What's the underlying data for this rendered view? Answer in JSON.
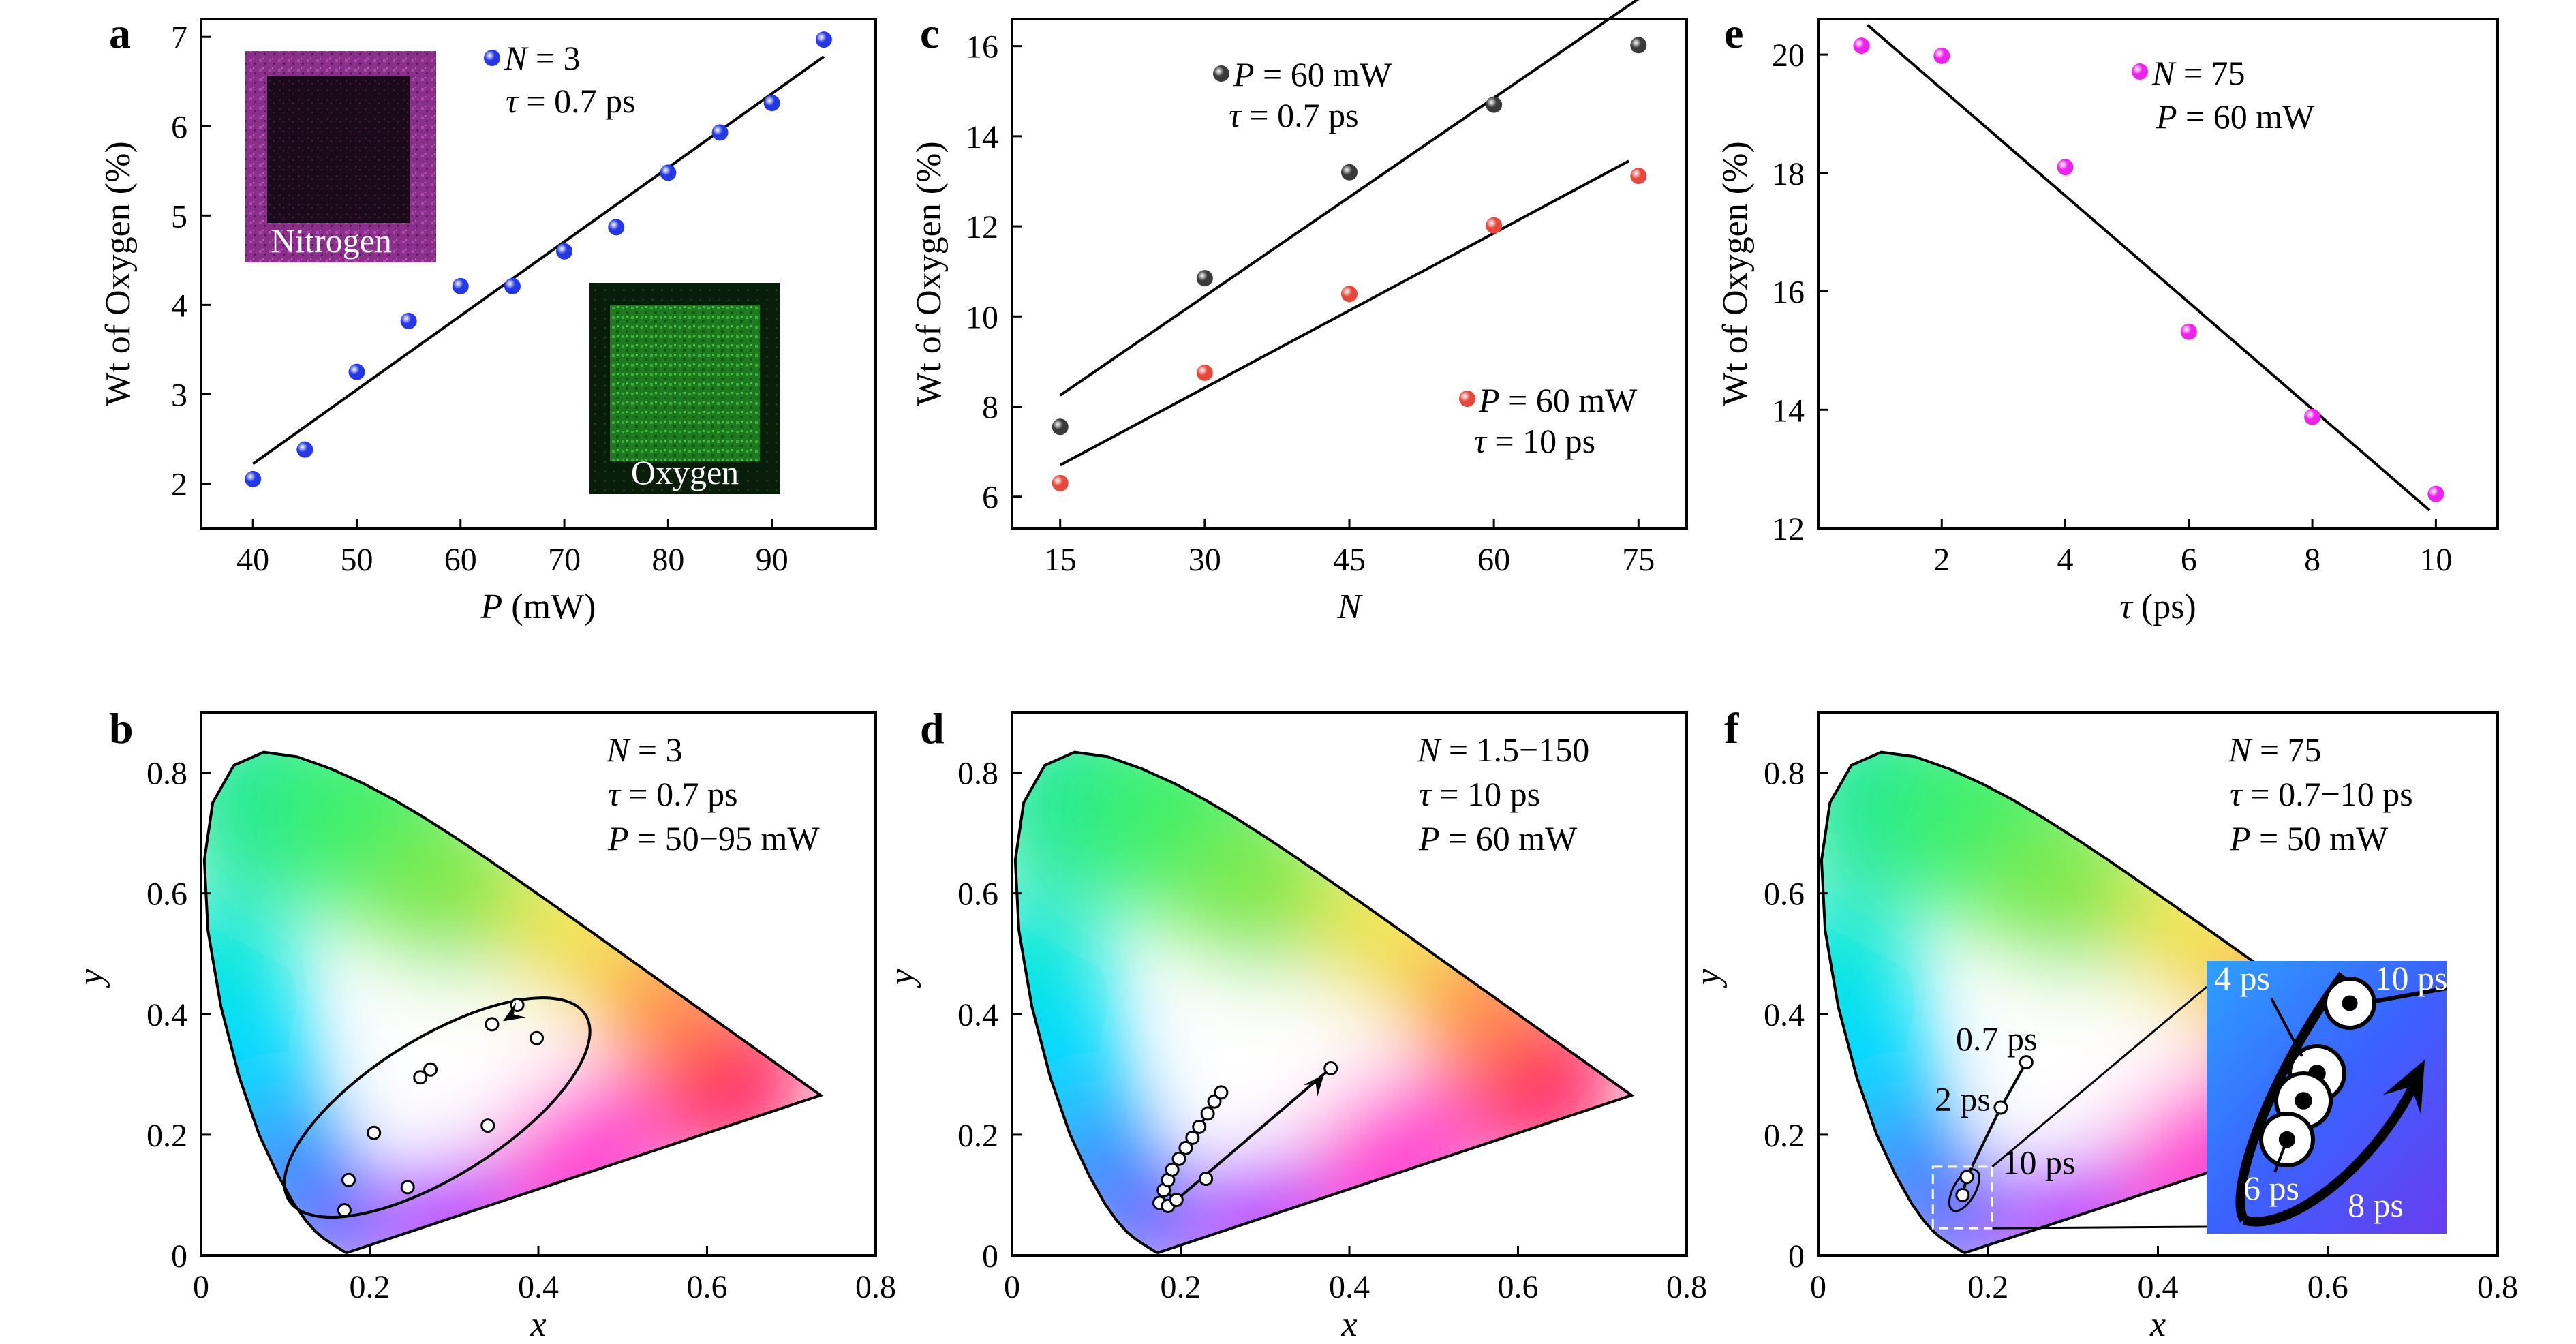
{
  "chart_data": [
    {
      "panel": "a",
      "type": "scatter",
      "xlabel": "P (mW)",
      "ylabel": "Wt of Oxygen (%)",
      "xlim": [
        35,
        100
      ],
      "ylim": [
        1.5,
        7.2
      ],
      "xticks": [
        "40",
        "50",
        "60",
        "70",
        "80",
        "90"
      ],
      "yticks": [
        "2",
        "3",
        "4",
        "5",
        "6",
        "7"
      ],
      "series": [
        {
          "color": "#2438e8",
          "x": [
            40,
            45,
            50,
            55,
            60,
            65,
            70,
            75,
            80,
            85,
            90,
            95
          ],
          "y": [
            2.05,
            2.38,
            3.25,
            3.82,
            4.21,
            4.21,
            4.6,
            4.87,
            5.48,
            5.93,
            6.26,
            6.97
          ],
          "fit": [
            [
              40,
              2.22
            ],
            [
              95,
              6.78
            ]
          ]
        }
      ],
      "annotation": {
        "line1": "N = 3",
        "line2": "τ = 0.7 ps"
      },
      "insets": [
        "Nitrogen",
        "Oxygen"
      ],
      "grid": false
    },
    {
      "panel": "c",
      "type": "scatter",
      "xlabel": "N",
      "ylabel": "Wt of Oxygen (%)",
      "xlim": [
        10,
        80
      ],
      "ylim": [
        5.3,
        16.6
      ],
      "xticks": [
        "15",
        "30",
        "45",
        "60",
        "75"
      ],
      "yticks": [
        "6",
        "8",
        "10",
        "12",
        "14",
        "16"
      ],
      "series": [
        {
          "color": "#3a3a3a",
          "x": [
            15,
            30,
            45,
            60,
            75
          ],
          "y": [
            7.55,
            10.85,
            13.2,
            14.7,
            16.02
          ],
          "fit": [
            [
              15,
              8.25
            ],
            [
              75,
              17.05
            ]
          ],
          "label": {
            "line1": "P = 60 mW",
            "line2": "τ = 0.7 ps"
          }
        },
        {
          "color": "#e8483c",
          "x": [
            15,
            30,
            45,
            60,
            75
          ],
          "y": [
            6.3,
            8.75,
            10.5,
            12.02,
            13.12
          ],
          "fit": [
            [
              15,
              6.7
            ],
            [
              74,
              13.45
            ]
          ],
          "label": {
            "line1": "P = 60 mW",
            "line2": "τ = 10 ps"
          }
        }
      ],
      "grid": false
    },
    {
      "panel": "e",
      "type": "scatter",
      "xlabel": "τ (ps)",
      "ylabel": "Wt of Oxygen (%)",
      "xlim": [
        0,
        11
      ],
      "ylim": [
        12,
        20.6
      ],
      "xticks": [
        "2",
        "4",
        "6",
        "8",
        "10"
      ],
      "yticks": [
        "12",
        "14",
        "16",
        "18",
        "20"
      ],
      "series": [
        {
          "color": "#ee22ee",
          "x": [
            0.7,
            2,
            4,
            6,
            8,
            10
          ],
          "y": [
            20.15,
            19.98,
            18.1,
            15.32,
            13.88,
            12.58
          ],
          "fit": [
            [
              0.8,
              20.5
            ],
            [
              9.9,
              12.3
            ]
          ]
        }
      ],
      "annotation": {
        "line1": "N = 75",
        "line2": "P = 60 mW"
      },
      "grid": false
    },
    {
      "panel": "b",
      "type": "scatter",
      "subtype": "CIE 1931 chromaticity diagram",
      "xlabel": "x",
      "ylabel": "y",
      "xlim": [
        0,
        0.8
      ],
      "ylim": [
        0,
        0.9
      ],
      "xticks": [
        "0",
        "0.2",
        "0.4",
        "0.6",
        "0.8"
      ],
      "yticks": [
        "0",
        "0.2",
        "0.4",
        "0.6",
        "0.8"
      ],
      "points": [
        [
          0.17,
          0.075
        ],
        [
          0.175,
          0.125
        ],
        [
          0.205,
          0.203
        ],
        [
          0.245,
          0.113
        ],
        [
          0.26,
          0.295
        ],
        [
          0.272,
          0.308
        ],
        [
          0.34,
          0.215
        ],
        [
          0.345,
          0.383
        ],
        [
          0.375,
          0.415
        ],
        [
          0.398,
          0.36
        ]
      ],
      "annotation": {
        "line1": "N = 3",
        "line2": "τ = 0.7 ps",
        "line3": "P = 50−95 mW"
      }
    },
    {
      "panel": "d",
      "type": "scatter",
      "subtype": "CIE 1931 chromaticity diagram",
      "xlabel": "x",
      "ylabel": "y",
      "xlim": [
        0,
        0.8
      ],
      "ylim": [
        0,
        0.9
      ],
      "xticks": [
        "0",
        "0.2",
        "0.4",
        "0.6",
        "0.8"
      ],
      "yticks": [
        "0",
        "0.2",
        "0.4",
        "0.6",
        "0.8"
      ],
      "points": [
        [
          0.175,
          0.087
        ],
        [
          0.185,
          0.082
        ],
        [
          0.195,
          0.092
        ],
        [
          0.18,
          0.108
        ],
        [
          0.185,
          0.125
        ],
        [
          0.19,
          0.142
        ],
        [
          0.198,
          0.16
        ],
        [
          0.206,
          0.178
        ],
        [
          0.214,
          0.195
        ],
        [
          0.222,
          0.213
        ],
        [
          0.232,
          0.235
        ],
        [
          0.24,
          0.255
        ],
        [
          0.248,
          0.27
        ],
        [
          0.23,
          0.127
        ],
        [
          0.378,
          0.31
        ]
      ],
      "annotation": {
        "line1": "N = 1.5−150",
        "line2": "τ = 10 ps",
        "line3": "P = 60 mW"
      }
    },
    {
      "panel": "f",
      "type": "scatter",
      "subtype": "CIE 1931 chromaticity diagram",
      "xlabel": "x",
      "ylabel": "y",
      "xlim": [
        0,
        0.8
      ],
      "ylim": [
        0,
        0.9
      ],
      "xticks": [
        "0",
        "0.2",
        "0.4",
        "0.6",
        "0.8"
      ],
      "yticks": [
        "0",
        "0.2",
        "0.4",
        "0.6",
        "0.8"
      ],
      "points": [
        [
          0.245,
          0.32
        ],
        [
          0.215,
          0.245
        ],
        [
          0.175,
          0.13
        ],
        [
          0.17,
          0.1
        ]
      ],
      "point_labels": [
        "0.7 ps",
        "2 ps",
        "10 ps"
      ],
      "annotation": {
        "line1": "N = 75",
        "line2": "τ = 0.7−10 ps",
        "line3": "P = 50 mW"
      },
      "inset_labels": [
        "4 ps",
        "10 ps",
        "6 ps",
        "8 ps"
      ]
    }
  ]
}
